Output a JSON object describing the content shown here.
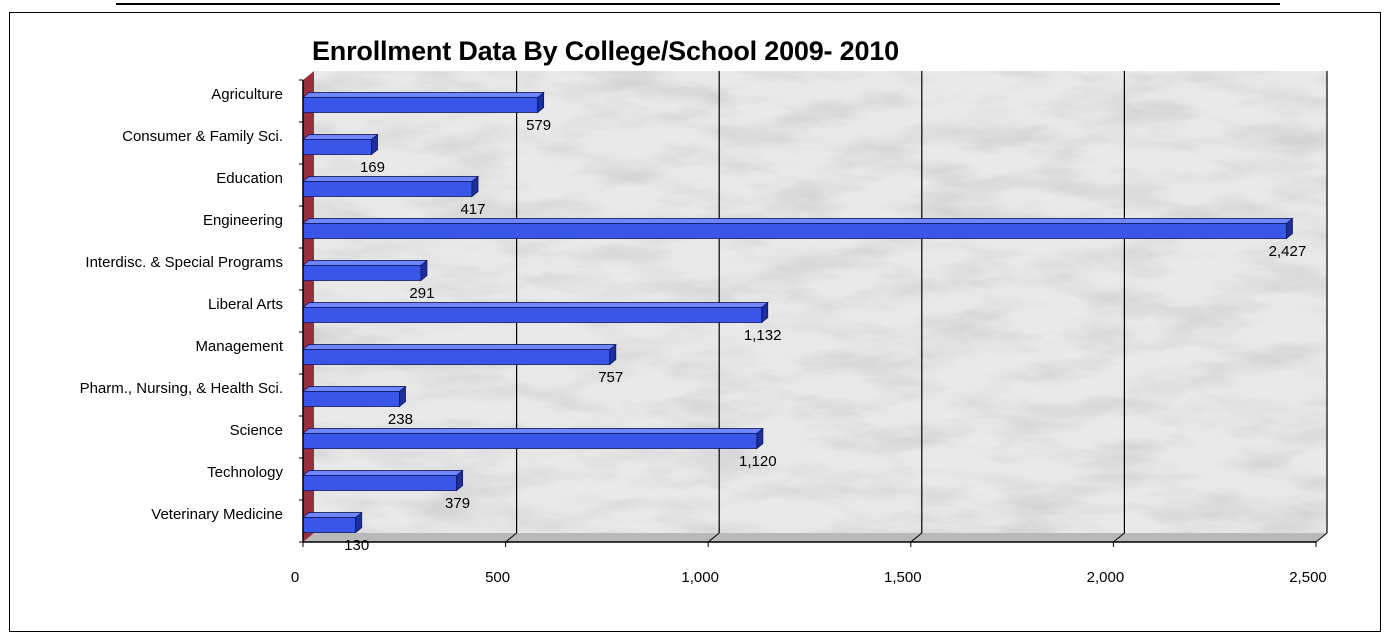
{
  "chart_data": {
    "type": "bar",
    "orientation": "horizontal",
    "title": "Enrollment Data By College/School 2009- 2010",
    "categories": [
      "Agriculture",
      "Consumer & Family Sci.",
      "Education",
      "Engineering",
      "Interdisc. & Special Programs",
      "Liberal Arts",
      "Management",
      "Pharm., Nursing, & Health Sci.",
      "Science",
      "Technology",
      "Veterinary Medicine"
    ],
    "values": [
      579,
      169,
      417,
      2427,
      291,
      1132,
      757,
      238,
      1120,
      379,
      130
    ],
    "data_labels": [
      "579",
      "169",
      "417",
      "2,427",
      "291",
      "1,132",
      "757",
      "238",
      "1,120",
      "379",
      "130"
    ],
    "xlim": [
      0,
      2500
    ],
    "xticks": [
      "0",
      "500",
      "1,000",
      "1,500",
      "2,000",
      "2,500"
    ],
    "grid": true,
    "legend": "none",
    "style": "3d",
    "colors": {
      "bar": "#3a56e8",
      "bar_top": "#6f86ff",
      "bar_side": "#1c2f9c",
      "wall_accent": "#8b1a2a",
      "floor": "#b9b9b9"
    }
  }
}
